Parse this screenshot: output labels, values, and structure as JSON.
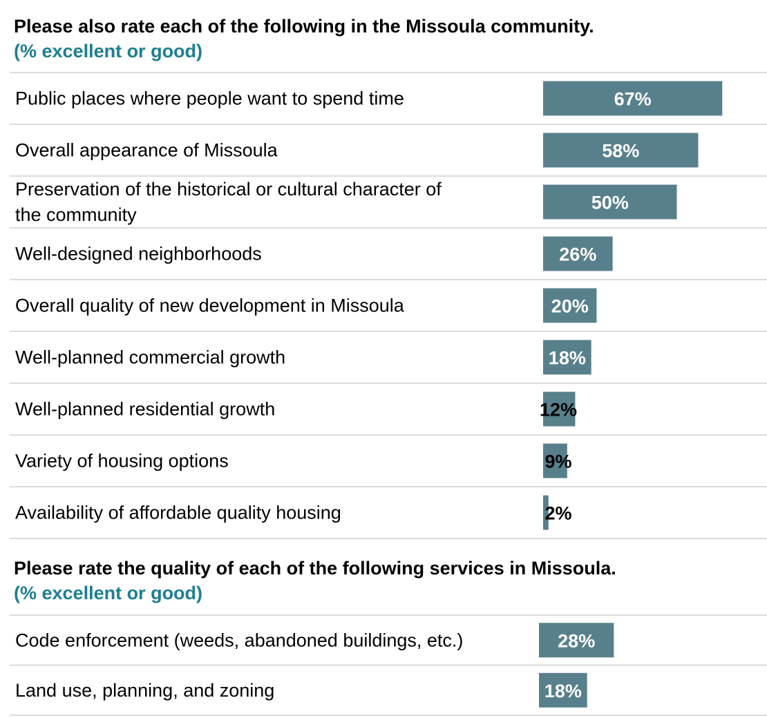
{
  "colors": {
    "bar": "#58808c",
    "rule": "#cfcfcf",
    "subtitle": "#1d7f8f",
    "label_inside": "#ffffff",
    "label_outside": "#000000"
  },
  "chart_data": [
    {
      "type": "bar",
      "orientation": "horizontal",
      "title": "Please also rate each of the following in the Missoula community.",
      "subtitle": "(% excellent or good)",
      "value_unit": "%",
      "xlim": [
        0,
        100
      ],
      "categories": [
        [
          "Public places where people want to spend time"
        ],
        [
          "Overall appearance of Missoula"
        ],
        [
          "Preservation of the historical or cultural character of",
          "the community"
        ],
        [
          "Well-designed neighborhoods"
        ],
        [
          "Overall quality of new development in Missoula"
        ],
        [
          "Well-planned commercial growth"
        ],
        [
          "Well-planned residential growth"
        ],
        [
          "Variety of housing options"
        ],
        [
          "Availability of affordable quality housing"
        ]
      ],
      "values": [
        67,
        58,
        50,
        26,
        20,
        18,
        12,
        9,
        2
      ],
      "value_labels": [
        "67%",
        "58%",
        "50%",
        "26%",
        "20%",
        "18%",
        "12%",
        "9%",
        "2%"
      ]
    },
    {
      "type": "bar",
      "orientation": "horizontal",
      "title": "Please rate the quality of each of the following services in Missoula.",
      "subtitle": "(% excellent or good)",
      "value_unit": "%",
      "xlim": [
        0,
        100
      ],
      "categories": [
        [
          "Code enforcement (weeds, abandoned buildings, etc.)"
        ],
        [
          "Land use, planning, and zoning"
        ]
      ],
      "values": [
        28,
        18
      ],
      "value_labels": [
        "28%",
        "18%"
      ]
    }
  ]
}
